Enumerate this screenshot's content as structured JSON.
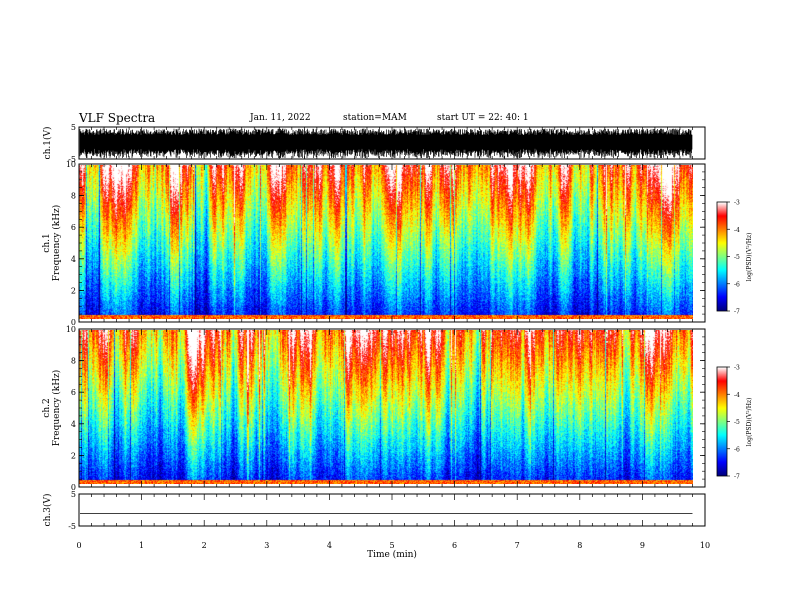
{
  "header": {
    "title": "VLF Spectra",
    "date": "Jan. 11, 2022",
    "station": "station=MAM",
    "start": "start UT = 22: 40: 1"
  },
  "colors": {
    "colormap": [
      "#00007f",
      "#0000ff",
      "#0080ff",
      "#00ffff",
      "#80ff80",
      "#ffff00",
      "#ff8000",
      "#ff0000",
      "#ffffff"
    ]
  },
  "chart_data": [
    {
      "type": "line",
      "ylabel": "ch.1(V)",
      "xlim": [
        0,
        10
      ],
      "ylim": [
        -5,
        5
      ],
      "yticks": [
        5,
        -5
      ],
      "x_data_end_min": 9.8,
      "description_level": "noise band approx -4 to 4 V"
    },
    {
      "type": "heatmap",
      "ylabel": "ch.1\nFrequency (kHz)",
      "ylabel_lines": [
        "ch.1",
        "Frequency (kHz)"
      ],
      "xlim": [
        0,
        10
      ],
      "ylim": [
        0,
        10
      ],
      "yticks": [
        0,
        2,
        4,
        6,
        8,
        10
      ],
      "colorbar": {
        "label": "log(PSD)(V²/Hz)",
        "range": [
          -7,
          -3
        ],
        "ticks": [
          -3,
          -4,
          -5,
          -6,
          -7
        ]
      }
    },
    {
      "type": "heatmap",
      "ylabel": "ch.2\nFrequency (kHz)",
      "ylabel_lines": [
        "ch.2",
        "Frequency (kHz)"
      ],
      "xlim": [
        0,
        10
      ],
      "ylim": [
        0,
        10
      ],
      "yticks": [
        0,
        2,
        4,
        6,
        8,
        10
      ],
      "colorbar": {
        "label": "log(PSD)(V²/Hz)",
        "range": [
          -7,
          -3
        ],
        "ticks": [
          -3,
          -4,
          -5,
          -6,
          -7
        ]
      }
    },
    {
      "type": "line",
      "ylabel": "ch.3(V)",
      "xlim": [
        0,
        10
      ],
      "ylim": [
        -5,
        5
      ],
      "yticks": [
        5,
        -5
      ],
      "series": [
        {
          "x": [
            0,
            9.8
          ],
          "y": [
            -1.1,
            -1.1
          ]
        }
      ]
    }
  ],
  "xaxis": {
    "label": "Time (min)",
    "ticks": [
      0,
      1,
      2,
      3,
      4,
      5,
      6,
      7,
      8,
      9,
      10
    ]
  }
}
